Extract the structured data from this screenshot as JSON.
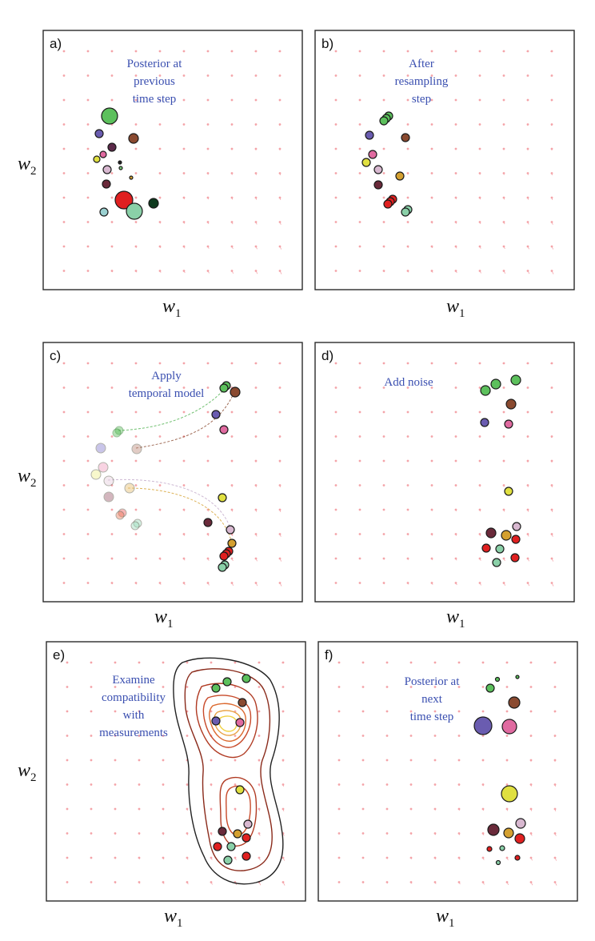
{
  "figure": {
    "panels": [
      {
        "label": "a)",
        "caption_lines": [
          "Posterior at",
          "previous",
          "time step"
        ]
      },
      {
        "label": "b)",
        "caption_lines": [
          "After",
          "resampling",
          "step"
        ]
      },
      {
        "label": "c)",
        "caption_lines": [
          "Apply",
          "temporal model"
        ]
      },
      {
        "label": "d)",
        "caption_lines": [
          "Add noise"
        ]
      },
      {
        "label": "e)",
        "caption_lines": [
          "Examine",
          "compatibility",
          "with",
          "measurements"
        ]
      },
      {
        "label": "f)",
        "caption_lines": [
          "Posterior at",
          "next",
          "time step"
        ]
      }
    ],
    "x_axis_label": "w",
    "x_axis_sub": "1",
    "y_axis_label": "w",
    "y_axis_sub": "2"
  },
  "colors": {
    "vector_field": "#f4a3a8",
    "frame": "#2b2b2b",
    "caption": "#3a4fb0",
    "contour_outer": "#222222",
    "contour_mid": "#b33a2a",
    "contour_inner": "#f0d040"
  }
}
